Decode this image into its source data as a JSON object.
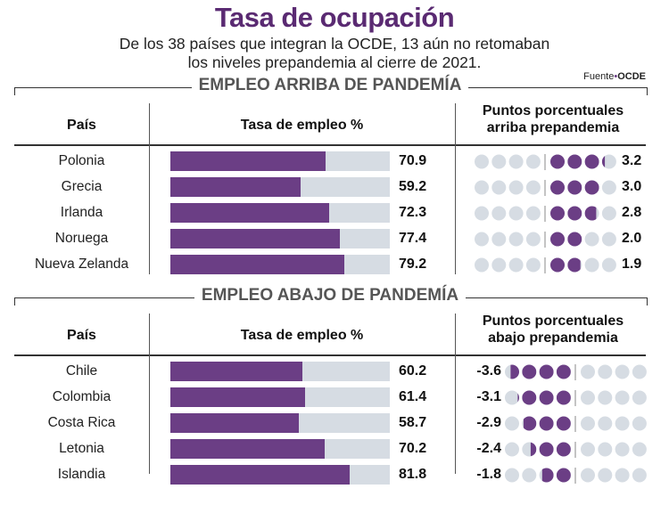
{
  "header": {
    "title": "Tasa de ocupación",
    "subtitle_line1": "De los 38 países que integran la OCDE, 13 aún no retomaban",
    "subtitle_line2": "los niveles prepandemia al cierre de 2021.",
    "source_label": "Fuente",
    "source_name": "OCDE"
  },
  "colors": {
    "title": "#5a2a72",
    "bar_fill": "#6b3e85",
    "track": "#d6dce3",
    "dot_empty": "#d6dce3",
    "dot_fill": "#6b3e85"
  },
  "chart_data": [
    {
      "type": "bar",
      "title": "EMPLEO ARRIBA DE PANDEMÍA",
      "columns": [
        "País",
        "Tasa de empleo %",
        "Puntos porcentuales arriba prepandemia"
      ],
      "categories": [
        "Polonia",
        "Grecia",
        "Irlanda",
        "Noruega",
        "Nueva Zelanda"
      ],
      "series": [
        {
          "name": "Tasa de empleo %",
          "values": [
            70.9,
            59.2,
            72.3,
            77.4,
            79.2
          ],
          "labels": [
            "70.9",
            "59.2",
            "72.3",
            "77.4",
            "79.2"
          ]
        },
        {
          "name": "Puntos porcentuales arriba prepandemia",
          "values": [
            3.2,
            3.0,
            2.8,
            2.0,
            1.9
          ],
          "labels": [
            "3.2",
            "3.0",
            "2.8",
            "2.0",
            "1.9"
          ]
        }
      ],
      "ylim": [
        0,
        100
      ],
      "dot_range": [
        -4,
        4
      ]
    },
    {
      "type": "bar",
      "title": "EMPLEO ABAJO DE PANDEMÍA",
      "columns": [
        "País",
        "Tasa de empleo %",
        "Puntos porcentuales abajo prepandemia"
      ],
      "categories": [
        "Chile",
        "Colombia",
        "Costa Rica",
        "Letonia",
        "Islandia"
      ],
      "series": [
        {
          "name": "Tasa de empleo %",
          "values": [
            60.2,
            61.4,
            58.7,
            70.2,
            81.8
          ],
          "labels": [
            "60.2",
            "61.4",
            "58.7",
            "70.2",
            "81.8"
          ]
        },
        {
          "name": "Puntos porcentuales abajo prepandemia",
          "values": [
            -3.6,
            -3.1,
            -2.9,
            -2.4,
            -1.8
          ],
          "labels": [
            "-3.6",
            "-3.1",
            "-2.9",
            "-2.4",
            "-1.8"
          ]
        }
      ],
      "ylim": [
        0,
        100
      ],
      "dot_range": [
        -4,
        4
      ]
    }
  ]
}
